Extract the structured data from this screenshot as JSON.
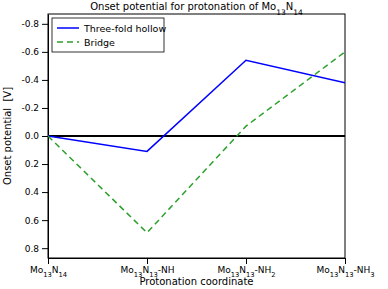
{
  "chart_data": {
    "type": "line",
    "title": "Onset potential for protonation of Mo13N14",
    "x_label": "Protonation coordinate",
    "y_label": "Onset potential  [V]",
    "categories": [
      "Mo13N14",
      "Mo13N13-NH",
      "Mo13N13-NH2",
      "Mo13N13-NH3"
    ],
    "series": [
      {
        "name": "Three-fold hollow",
        "color": "#0000ff",
        "line_style": "solid",
        "values": [
          0,
          0.11,
          -0.54,
          -0.38
        ]
      },
      {
        "name": "Bridge",
        "color": "#2ca02c",
        "line_style": "dashed",
        "values": [
          0,
          0.69,
          -0.07,
          -0.6
        ]
      }
    ],
    "hline": 0,
    "ylim": [
      0.87,
      -0.87
    ],
    "yticks": [
      -0.8,
      -0.6,
      -0.4,
      -0.2,
      {
        "value": 0,
        "label": "0.0"
      },
      0.2,
      0.4,
      0.6,
      0.8
    ],
    "legend": "upper left",
    "grid": false
  }
}
